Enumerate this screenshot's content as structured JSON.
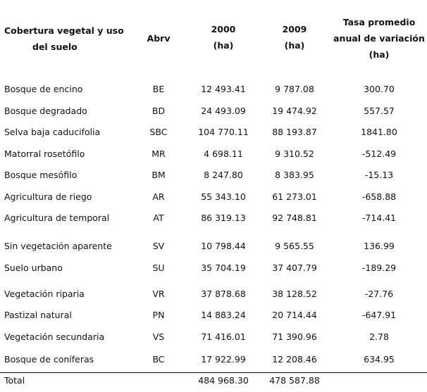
{
  "headers": {
    "cobertura_line1": "Cobertura vegetal y uso",
    "cobertura_line2": "del suelo",
    "abrv": "Abrv",
    "y2000_line1": "2000",
    "y2000_line2": "(ha)",
    "y2009_line1": "2009",
    "y2009_line2": "(ha)",
    "tasa_line1": "Tasa promedio",
    "tasa_line2": "anual de variación",
    "tasa_line3": "(ha)"
  },
  "rows": [
    {
      "name": "Bosque de encino",
      "abrv": "BE",
      "y2000": "12 493.41",
      "y2009": "9 787.08",
      "tasa": "300.70"
    },
    {
      "name": "Bosque degradado",
      "abrv": "BD",
      "y2000": "24 493.09",
      "y2009": "19 474.92",
      "tasa": "557.57"
    },
    {
      "name": "Selva baja caducifolia",
      "abrv": "SBC",
      "y2000": "104 770.11",
      "y2009": "88 193.87",
      "tasa": "1841.80"
    },
    {
      "name": "Matorral rosetófilo",
      "abrv": "MR",
      "y2000": "4 698.11",
      "y2009": "9 310.52",
      "tasa": "-512.49"
    },
    {
      "name": "Bosque mesófilo",
      "abrv": "BM",
      "y2000": "8 247.80",
      "y2009": "8 383.95",
      "tasa": "-15.13"
    },
    {
      "name": "Agricultura de riego",
      "abrv": "AR",
      "y2000": "55 343.10",
      "y2009": "61 273.01",
      "tasa": "-658.88"
    },
    {
      "name": "Agricultura de temporal",
      "abrv": "AT",
      "y2000": "86 319.13",
      "y2009": "92 748.81",
      "tasa": "-714.41"
    },
    {
      "name": "Sin vegetación aparente",
      "abrv": "SV",
      "y2000": "10 798.44",
      "y2009": "9 565.55",
      "tasa": "136.99"
    },
    {
      "name": "Suelo urbano",
      "abrv": "SU",
      "y2000": "35 704.19",
      "y2009": "37 407.79",
      "tasa": "-189.29"
    },
    {
      "name": "Vegetación riparia",
      "abrv": "VR",
      "y2000": "37 878.68",
      "y2009": "38 128.52",
      "tasa": "-27.76"
    },
    {
      "name": "Pastizal natural",
      "abrv": "PN",
      "y2000": "14 883.24",
      "y2009": "20 714.44",
      "tasa": "-647.91"
    },
    {
      "name": "Vegetación secundaria",
      "abrv": "VS",
      "y2000": "71 416.01",
      "y2009": "71 390.96",
      "tasa": "2.78"
    },
    {
      "name": "Bosque de coníferas",
      "abrv": "BC",
      "y2000": "17 922.99",
      "y2009": "12 208.46",
      "tasa": "634.95"
    }
  ],
  "total": {
    "name": "Total",
    "y2000": "484 968.30",
    "y2009": "478 587.88"
  }
}
